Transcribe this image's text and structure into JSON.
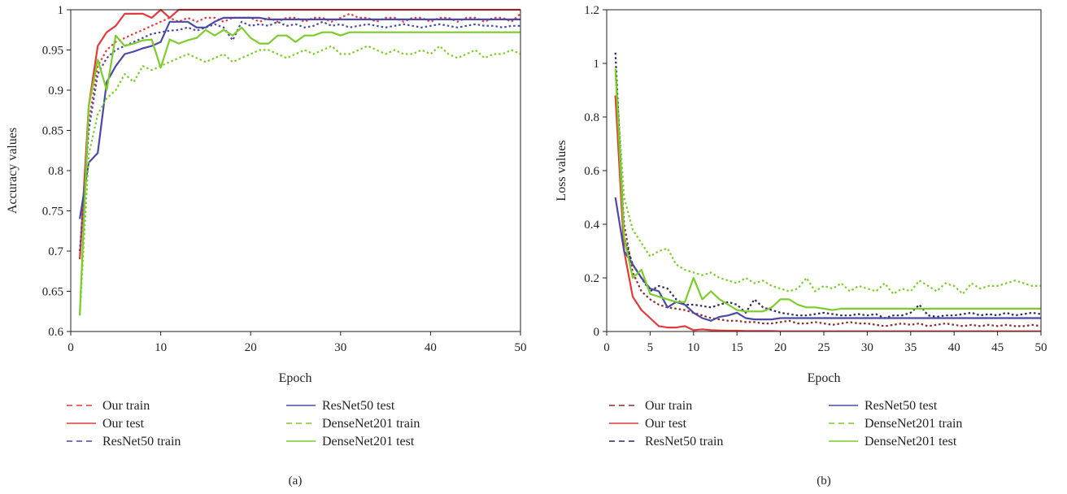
{
  "colors": {
    "our": "#e23b3b",
    "resnet": "#4a4aa6",
    "densenet": "#7ccc2c",
    "resnet_loss_train": "#2a2a5e",
    "our_loss_train": "#8a2a2a"
  },
  "chart_data": [
    {
      "type": "line",
      "title": "",
      "xlabel": "Epoch",
      "ylabel": "Accuracy values",
      "panel_label": "(a)",
      "xlim": [
        0,
        50
      ],
      "ylim": [
        0.6,
        1.0
      ],
      "xticks": [
        0,
        10,
        20,
        30,
        40,
        50
      ],
      "yticks": [
        0.6,
        0.65,
        0.7,
        0.75,
        0.8,
        0.85,
        0.9,
        0.95,
        1
      ],
      "ytick_labels": [
        "0.6",
        "0.65",
        "0.7",
        "0.75",
        "0.8",
        "0.85",
        "0.9",
        "0.95",
        "1"
      ],
      "grid": false,
      "legend_placement": "bottom",
      "x": [
        1,
        2,
        3,
        4,
        5,
        6,
        7,
        8,
        9,
        10,
        11,
        12,
        13,
        14,
        15,
        16,
        17,
        18,
        19,
        20,
        21,
        22,
        23,
        24,
        25,
        26,
        27,
        28,
        29,
        30,
        31,
        32,
        33,
        34,
        35,
        36,
        37,
        38,
        39,
        40,
        41,
        42,
        43,
        44,
        45,
        46,
        47,
        48,
        49,
        50
      ],
      "series": [
        {
          "name": "Our train",
          "style": "dashed",
          "color_key": "our",
          "values": [
            0.69,
            0.86,
            0.93,
            0.95,
            0.96,
            0.965,
            0.97,
            0.975,
            0.98,
            0.985,
            0.99,
            0.985,
            0.99,
            0.985,
            0.99,
            0.99,
            0.985,
            0.99,
            0.99,
            0.99,
            0.985,
            0.99,
            0.985,
            0.99,
            0.99,
            0.985,
            0.99,
            0.99,
            0.985,
            0.99,
            0.995,
            0.99,
            0.99,
            0.985,
            0.99,
            0.99,
            0.985,
            0.99,
            0.99,
            0.985,
            0.99,
            0.99,
            0.985,
            0.99,
            0.99,
            0.985,
            0.99,
            0.99,
            0.985,
            0.995
          ]
        },
        {
          "name": "Our test",
          "style": "solid",
          "color_key": "our",
          "values": [
            0.69,
            0.88,
            0.955,
            0.972,
            0.98,
            0.995,
            0.995,
            0.995,
            0.99,
            1.0,
            0.99,
            1.0,
            1.0,
            1.0,
            1.0,
            1.0,
            1.0,
            1.0,
            1.0,
            1.0,
            1.0,
            1.0,
            1.0,
            1.0,
            1.0,
            1.0,
            1.0,
            1.0,
            1.0,
            1.0,
            1.0,
            1.0,
            1.0,
            1.0,
            1.0,
            1.0,
            1.0,
            1.0,
            1.0,
            1.0,
            1.0,
            1.0,
            1.0,
            1.0,
            1.0,
            1.0,
            1.0,
            1.0,
            1.0,
            1.0
          ]
        },
        {
          "name": "ResNet50 train",
          "style": "dashed",
          "color_key": "resnet",
          "values": [
            0.7,
            0.85,
            0.92,
            0.94,
            0.95,
            0.955,
            0.96,
            0.965,
            0.97,
            0.972,
            0.974,
            0.975,
            0.978,
            0.974,
            0.978,
            0.982,
            0.978,
            0.962,
            0.985,
            0.98,
            0.982,
            0.98,
            0.985,
            0.98,
            0.982,
            0.978,
            0.98,
            0.985,
            0.98,
            0.982,
            0.978,
            0.98,
            0.982,
            0.98,
            0.978,
            0.98,
            0.982,
            0.98,
            0.978,
            0.98,
            0.982,
            0.98,
            0.978,
            0.98,
            0.982,
            0.98,
            0.98,
            0.978,
            0.98,
            0.98
          ]
        },
        {
          "name": "ResNet50 test",
          "style": "solid",
          "color_key": "resnet",
          "values": [
            0.74,
            0.81,
            0.822,
            0.91,
            0.93,
            0.945,
            0.948,
            0.952,
            0.955,
            0.96,
            0.985,
            0.985,
            0.985,
            0.978,
            0.978,
            0.985,
            0.99,
            0.99,
            0.99,
            0.99,
            0.99,
            0.988,
            0.988,
            0.988,
            0.988,
            0.988,
            0.988,
            0.988,
            0.988,
            0.988,
            0.988,
            0.988,
            0.988,
            0.988,
            0.988,
            0.988,
            0.988,
            0.988,
            0.988,
            0.988,
            0.988,
            0.988,
            0.988,
            0.988,
            0.988,
            0.988,
            0.988,
            0.988,
            0.988,
            0.988
          ]
        },
        {
          "name": "DenseNet201 train",
          "style": "dashed",
          "color_key": "densenet",
          "values": [
            0.62,
            0.82,
            0.87,
            0.89,
            0.9,
            0.92,
            0.91,
            0.93,
            0.925,
            0.93,
            0.935,
            0.94,
            0.945,
            0.94,
            0.935,
            0.94,
            0.945,
            0.935,
            0.94,
            0.945,
            0.95,
            0.95,
            0.945,
            0.94,
            0.945,
            0.95,
            0.945,
            0.95,
            0.955,
            0.945,
            0.945,
            0.95,
            0.955,
            0.95,
            0.945,
            0.95,
            0.945,
            0.945,
            0.95,
            0.945,
            0.955,
            0.945,
            0.94,
            0.945,
            0.95,
            0.94,
            0.945,
            0.945,
            0.95,
            0.945
          ]
        },
        {
          "name": "DenseNet201 test",
          "style": "solid",
          "color_key": "densenet",
          "values": [
            0.62,
            0.88,
            0.938,
            0.9,
            0.968,
            0.955,
            0.958,
            0.962,
            0.963,
            0.928,
            0.963,
            0.958,
            0.962,
            0.965,
            0.975,
            0.968,
            0.975,
            0.968,
            0.978,
            0.965,
            0.958,
            0.958,
            0.968,
            0.968,
            0.96,
            0.968,
            0.968,
            0.972,
            0.972,
            0.968,
            0.972,
            0.972,
            0.972,
            0.972,
            0.972,
            0.972,
            0.972,
            0.972,
            0.972,
            0.972,
            0.972,
            0.972,
            0.972,
            0.972,
            0.972,
            0.972,
            0.972,
            0.972,
            0.972,
            0.972
          ]
        }
      ]
    },
    {
      "type": "line",
      "title": "",
      "xlabel": "Epoch",
      "ylabel": "Loss values",
      "panel_label": "(b)",
      "xlim": [
        0,
        50
      ],
      "ylim": [
        0,
        1.2
      ],
      "xticks": [
        0,
        5,
        10,
        15,
        20,
        25,
        30,
        35,
        40,
        45,
        50
      ],
      "yticks": [
        0,
        0.2,
        0.4,
        0.6,
        0.8,
        1,
        1.2
      ],
      "ytick_labels": [
        "0",
        "0.2",
        "0.4",
        "0.6",
        "0.8",
        "1",
        "1.2"
      ],
      "grid": false,
      "legend_placement": "bottom",
      "x": [
        1,
        2,
        3,
        4,
        5,
        6,
        7,
        8,
        9,
        10,
        11,
        12,
        13,
        14,
        15,
        16,
        17,
        18,
        19,
        20,
        21,
        22,
        23,
        24,
        25,
        26,
        27,
        28,
        29,
        30,
        31,
        32,
        33,
        34,
        35,
        36,
        37,
        38,
        39,
        40,
        41,
        42,
        43,
        44,
        45,
        46,
        47,
        48,
        49,
        50
      ],
      "series": [
        {
          "name": "Our train",
          "style": "dashed",
          "color_key": "our_loss_train",
          "values": [
            0.88,
            0.4,
            0.22,
            0.15,
            0.12,
            0.1,
            0.09,
            0.085,
            0.08,
            0.07,
            0.06,
            0.05,
            0.045,
            0.04,
            0.04,
            0.035,
            0.035,
            0.03,
            0.03,
            0.035,
            0.04,
            0.03,
            0.03,
            0.035,
            0.03,
            0.025,
            0.03,
            0.035,
            0.03,
            0.03,
            0.025,
            0.02,
            0.025,
            0.03,
            0.025,
            0.03,
            0.02,
            0.025,
            0.03,
            0.025,
            0.02,
            0.025,
            0.02,
            0.025,
            0.02,
            0.025,
            0.02,
            0.02,
            0.025,
            0.02
          ]
        },
        {
          "name": "Our test",
          "style": "solid",
          "color_key": "our",
          "values": [
            0.88,
            0.3,
            0.13,
            0.08,
            0.05,
            0.02,
            0.015,
            0.015,
            0.02,
            0.005,
            0.008,
            0.005,
            0.004,
            0.003,
            0.003,
            0.002,
            0.002,
            0.002,
            0.002,
            0.001,
            0.001,
            0.001,
            0.001,
            0.001,
            0.001,
            0.001,
            0.001,
            0.001,
            0.001,
            0.001,
            0.001,
            0.001,
            0.001,
            0.001,
            0.001,
            0.001,
            0.001,
            0.001,
            0.001,
            0.001,
            0.001,
            0.001,
            0.001,
            0.001,
            0.001,
            0.001,
            0.001,
            0.001,
            0.001,
            0.001
          ]
        },
        {
          "name": "ResNet50 train",
          "style": "dashed",
          "color_key": "resnet_loss_train",
          "values": [
            1.04,
            0.35,
            0.25,
            0.2,
            0.15,
            0.17,
            0.16,
            0.12,
            0.1,
            0.1,
            0.095,
            0.09,
            0.1,
            0.11,
            0.1,
            0.07,
            0.12,
            0.09,
            0.08,
            0.07,
            0.065,
            0.06,
            0.06,
            0.065,
            0.07,
            0.065,
            0.06,
            0.06,
            0.065,
            0.06,
            0.065,
            0.05,
            0.06,
            0.06,
            0.07,
            0.1,
            0.06,
            0.055,
            0.06,
            0.06,
            0.065,
            0.07,
            0.06,
            0.065,
            0.06,
            0.07,
            0.06,
            0.065,
            0.07,
            0.065
          ]
        },
        {
          "name": "ResNet50 test",
          "style": "solid",
          "color_key": "resnet",
          "values": [
            0.5,
            0.3,
            0.25,
            0.2,
            0.16,
            0.15,
            0.09,
            0.11,
            0.1,
            0.07,
            0.05,
            0.04,
            0.055,
            0.06,
            0.07,
            0.05,
            0.045,
            0.045,
            0.045,
            0.05,
            0.05,
            0.05,
            0.05,
            0.05,
            0.05,
            0.05,
            0.05,
            0.05,
            0.05,
            0.05,
            0.05,
            0.05,
            0.05,
            0.05,
            0.05,
            0.05,
            0.05,
            0.05,
            0.05,
            0.05,
            0.05,
            0.05,
            0.05,
            0.05,
            0.05,
            0.05,
            0.05,
            0.05,
            0.05,
            0.05
          ]
        },
        {
          "name": "DenseNet201 train",
          "style": "dashed",
          "color_key": "densenet",
          "values": [
            0.98,
            0.5,
            0.38,
            0.33,
            0.28,
            0.3,
            0.31,
            0.25,
            0.23,
            0.22,
            0.21,
            0.22,
            0.2,
            0.19,
            0.18,
            0.2,
            0.18,
            0.19,
            0.17,
            0.16,
            0.15,
            0.16,
            0.2,
            0.15,
            0.17,
            0.16,
            0.18,
            0.15,
            0.17,
            0.16,
            0.15,
            0.18,
            0.14,
            0.16,
            0.15,
            0.19,
            0.17,
            0.15,
            0.18,
            0.17,
            0.14,
            0.18,
            0.16,
            0.17,
            0.17,
            0.18,
            0.19,
            0.18,
            0.17,
            0.17
          ]
        },
        {
          "name": "DenseNet201 test",
          "style": "solid",
          "color_key": "densenet",
          "values": [
            0.98,
            0.35,
            0.2,
            0.23,
            0.14,
            0.13,
            0.12,
            0.11,
            0.11,
            0.2,
            0.12,
            0.15,
            0.12,
            0.1,
            0.08,
            0.075,
            0.075,
            0.075,
            0.09,
            0.12,
            0.12,
            0.1,
            0.09,
            0.09,
            0.085,
            0.08,
            0.085,
            0.085,
            0.085,
            0.085,
            0.085,
            0.085,
            0.085,
            0.085,
            0.085,
            0.085,
            0.085,
            0.085,
            0.085,
            0.085,
            0.085,
            0.085,
            0.085,
            0.085,
            0.085,
            0.085,
            0.085,
            0.085,
            0.085,
            0.085
          ]
        }
      ]
    }
  ]
}
